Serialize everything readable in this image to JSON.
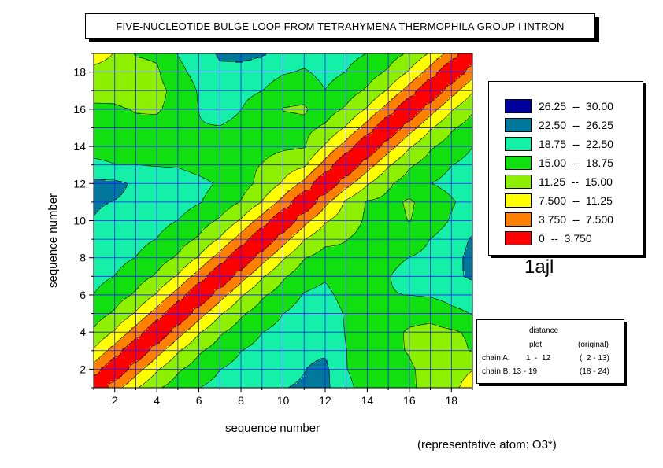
{
  "chart_data": {
    "type": "heatmap",
    "title": "FIVE-NUCLEOTIDE BULGE LOOP FROM TETRAHYMENA THERMOPHILA GROUP I INTRON",
    "xlabel": "sequence number",
    "ylabel": "sequence number",
    "xlim": [
      1,
      19
    ],
    "ylim": [
      1,
      19
    ],
    "xticks": [
      "2",
      "4",
      "6",
      "8",
      "10",
      "12",
      "14",
      "16",
      "18"
    ],
    "yticks": [
      "2",
      "4",
      "6",
      "8",
      "10",
      "12",
      "14",
      "16",
      "18"
    ],
    "grid": true,
    "levels": [
      {
        "label": "26.25  --  30.00",
        "min": 26.25,
        "max": 30.0,
        "color": "#00009c"
      },
      {
        "label": "22.50  --  26.25",
        "min": 22.5,
        "max": 26.25,
        "color": "#00789c"
      },
      {
        "label": "18.75  --  22.50",
        "min": 18.75,
        "max": 22.5,
        "color": "#14f0a8"
      },
      {
        "label": "15.00  --  18.75",
        "min": 15.0,
        "max": 18.75,
        "color": "#10e010"
      },
      {
        "label": "11.25  --  15.00",
        "min": 11.25,
        "max": 15.0,
        "color": "#8cf000"
      },
      {
        "label": "7.500  --  11.25",
        "min": 7.5,
        "max": 11.25,
        "color": "#ffff00"
      },
      {
        "label": "3.750  --  7.500",
        "min": 3.75,
        "max": 7.5,
        "color": "#ff8000"
      },
      {
        "label": "0  --  3.750",
        "min": 0,
        "max": 3.75,
        "color": "#ff0000"
      }
    ],
    "matrix": [
      [
        0.0,
        5.8,
        10.8,
        14.5,
        16.6,
        18.7,
        19.9,
        20.7,
        21.7,
        22.4,
        22.8,
        23.5,
        19.2,
        18.0,
        16.5,
        15.5,
        14.0,
        12.4,
        9.3
      ],
      [
        5.8,
        0.0,
        5.8,
        10.8,
        14.5,
        16.6,
        18.7,
        19.9,
        20.7,
        21.7,
        22.4,
        23.3,
        18.8,
        17.9,
        16.7,
        15.4,
        14.0,
        12.9,
        11.4
      ],
      [
        10.8,
        5.8,
        0.0,
        5.8,
        10.8,
        14.5,
        16.6,
        18.7,
        19.9,
        20.7,
        21.9,
        22.0,
        18.8,
        17.4,
        15.7,
        14.8,
        13.1,
        13.5,
        15.3
      ],
      [
        14.5,
        10.8,
        5.8,
        0.0,
        5.8,
        10.8,
        14.5,
        16.6,
        18.7,
        19.9,
        20.9,
        21.6,
        18.5,
        17.3,
        16.0,
        14.6,
        14.0,
        14.5,
        15.6
      ],
      [
        16.6,
        14.5,
        10.8,
        5.8,
        0.0,
        5.8,
        10.8,
        14.5,
        16.6,
        18.7,
        20.3,
        21.2,
        18.3,
        17.1,
        16.2,
        16.2,
        16.1,
        17.8,
        18.9
      ],
      [
        18.7,
        16.6,
        14.5,
        10.8,
        5.8,
        0.0,
        5.8,
        10.8,
        14.5,
        16.6,
        19.0,
        19.8,
        17.3,
        18.3,
        18.6,
        18.8,
        19.1,
        20.0,
        20.7
      ],
      [
        19.9,
        18.7,
        16.6,
        14.5,
        10.8,
        5.8,
        0.0,
        5.8,
        10.8,
        14.5,
        17.1,
        18.3,
        16.5,
        17.6,
        18.6,
        20.0,
        21.0,
        21.8,
        23.0
      ],
      [
        20.7,
        19.9,
        18.7,
        16.6,
        14.5,
        10.8,
        5.8,
        0.0,
        5.8,
        10.8,
        14.8,
        16.4,
        15.8,
        17.1,
        17.9,
        18.8,
        19.6,
        21.4,
        23.4
      ],
      [
        21.7,
        20.7,
        19.9,
        18.7,
        16.6,
        14.5,
        10.8,
        5.8,
        0.0,
        5.8,
        11.1,
        14.0,
        14.9,
        16.1,
        16.5,
        16.9,
        18.8,
        21.0,
        22.8
      ],
      [
        22.4,
        21.7,
        20.7,
        19.9,
        18.7,
        16.6,
        14.5,
        10.8,
        5.8,
        0.0,
        6.2,
        10.8,
        13.1,
        15.6,
        16.0,
        14.9,
        16.2,
        19.2,
        21.5
      ],
      [
        22.8,
        22.4,
        21.9,
        20.9,
        20.3,
        19.0,
        17.1,
        14.8,
        11.1,
        6.2,
        0.0,
        6.4,
        11.9,
        15.3,
        15.9,
        14.6,
        16.2,
        18.3,
        20.5
      ],
      [
        23.5,
        23.3,
        22.0,
        21.6,
        21.2,
        19.8,
        18.3,
        16.4,
        14.0,
        10.8,
        6.4,
        0.0,
        6.0,
        10.8,
        14.5,
        16.6,
        18.7,
        19.9,
        20.7
      ],
      [
        19.2,
        18.8,
        18.8,
        18.5,
        18.3,
        17.3,
        16.5,
        15.8,
        14.9,
        13.1,
        11.9,
        6.0,
        0.0,
        5.8,
        10.8,
        14.5,
        16.6,
        18.7,
        19.9
      ],
      [
        18.0,
        17.9,
        17.4,
        17.3,
        17.1,
        18.3,
        17.6,
        17.1,
        16.1,
        15.6,
        15.3,
        10.8,
        5.8,
        0.0,
        5.8,
        10.8,
        14.5,
        16.6,
        18.7
      ],
      [
        16.5,
        16.7,
        15.7,
        16.0,
        16.2,
        18.6,
        18.6,
        17.9,
        16.5,
        16.0,
        15.9,
        14.5,
        10.8,
        5.8,
        0.0,
        5.8,
        10.8,
        14.5,
        16.6
      ],
      [
        15.5,
        15.4,
        14.8,
        14.6,
        16.2,
        18.8,
        20.0,
        18.8,
        16.9,
        14.9,
        14.6,
        16.6,
        14.5,
        10.8,
        5.8,
        0.0,
        5.8,
        10.8,
        14.5
      ],
      [
        14.0,
        14.0,
        13.1,
        14.0,
        16.1,
        19.1,
        21.0,
        19.6,
        18.8,
        16.2,
        16.2,
        18.7,
        16.6,
        14.5,
        10.8,
        5.8,
        0.0,
        5.8,
        10.8
      ],
      [
        12.4,
        12.9,
        13.5,
        14.5,
        17.8,
        20.0,
        21.8,
        21.4,
        21.0,
        19.2,
        18.3,
        19.9,
        18.7,
        16.6,
        14.5,
        10.8,
        5.8,
        0.0,
        5.8
      ],
      [
        9.3,
        11.4,
        15.3,
        15.6,
        18.9,
        20.7,
        23.0,
        23.4,
        22.8,
        21.5,
        20.5,
        20.7,
        19.9,
        18.7,
        16.6,
        14.5,
        10.8,
        5.8,
        0.0
      ]
    ]
  },
  "legend": {
    "entries": [
      {
        "label": "26.25  --  30.00",
        "color": "#00009c"
      },
      {
        "label": "22.50  --  26.25",
        "color": "#00789c"
      },
      {
        "label": "18.75  --  22.50",
        "color": "#14f0a8"
      },
      {
        "label": "15.00  --  18.75",
        "color": "#10e010"
      },
      {
        "label": "11.25  --  15.00",
        "color": "#8cf000"
      },
      {
        "label": "7.500  --  11.25",
        "color": "#ffff00"
      },
      {
        "label": "3.750  --  7.500",
        "color": "#ff8000"
      },
      {
        "label": "0  --  3.750",
        "color": "#ff0000"
      }
    ]
  },
  "pdb_id": "1ajl",
  "info": {
    "header_line1": "distance",
    "header_line2": "plot",
    "header_original": "(original)",
    "chain_a_label": "chain A:",
    "chain_a_range": "1  -  12",
    "chain_a_original": "(  2 - 13)",
    "chain_b_label": "chain B: 13 - 19",
    "chain_b_original": "(18 - 24)"
  },
  "footnote": "(representative atom: O3*)"
}
